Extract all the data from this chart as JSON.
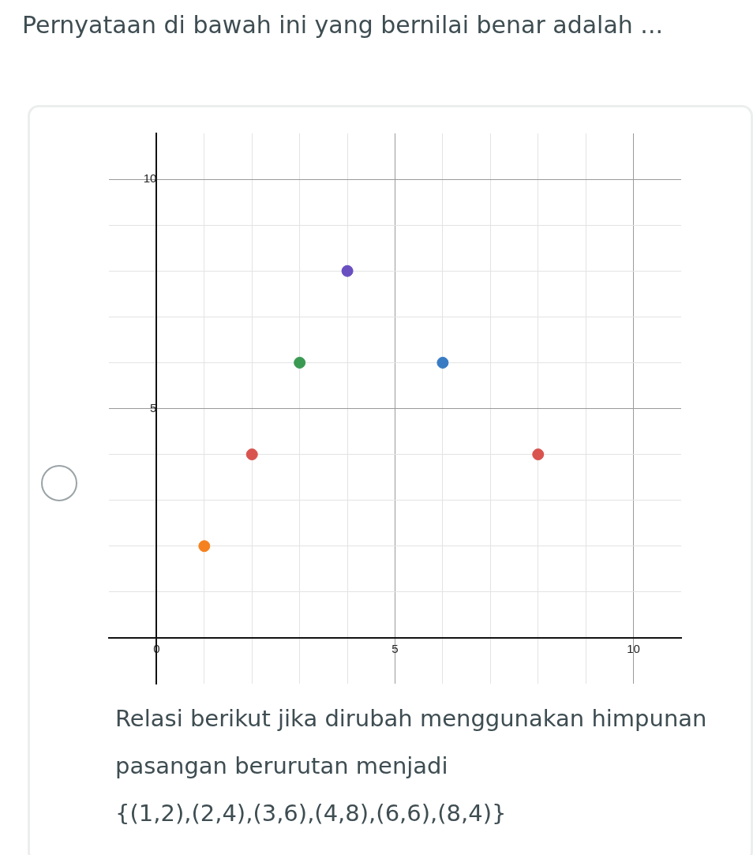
{
  "chart_data": {
    "type": "scatter",
    "title": "Pernyataan di bawah ini yang bernilai benar adalah ...",
    "x": [
      1,
      2,
      3,
      4,
      6,
      8
    ],
    "values": [
      2,
      4,
      6,
      8,
      6,
      4
    ],
    "colors": [
      "#f5821f",
      "#d9534f",
      "#3a9a52",
      "#6a4fc1",
      "#3a7cc4",
      "#d9534f"
    ],
    "xlim": [
      -1,
      11
    ],
    "ylim": [
      -1,
      11
    ],
    "xticks": [
      {
        "value": 0,
        "label": "0"
      },
      {
        "value": 1,
        "label": null
      },
      {
        "value": 2,
        "label": null
      },
      {
        "value": 3,
        "label": null
      },
      {
        "value": 4,
        "label": null
      },
      5,
      {
        "value": 6,
        "label": null
      },
      {
        "value": 7,
        "label": null
      },
      {
        "value": 8,
        "label": null
      },
      {
        "value": 9,
        "label": null
      },
      10
    ],
    "yticks": [
      {
        "value": 1,
        "label": null
      },
      {
        "value": 2,
        "label": null
      },
      {
        "value": 3,
        "label": null
      },
      {
        "value": 4,
        "label": null
      },
      5,
      {
        "value": 6,
        "label": null
      },
      {
        "value": 7,
        "label": null
      },
      {
        "value": 8,
        "label": null
      },
      {
        "value": 9,
        "label": null
      },
      10
    ],
    "grid": true,
    "marker": "circle",
    "legend": false,
    "annotations": [
      "Relasi berikut jika dirubah menggunakan himpunan pasangan berurutan menjadi",
      "{(1,2),(2,4),(3,6),(4,8),(6,6),(8,4)}"
    ]
  }
}
